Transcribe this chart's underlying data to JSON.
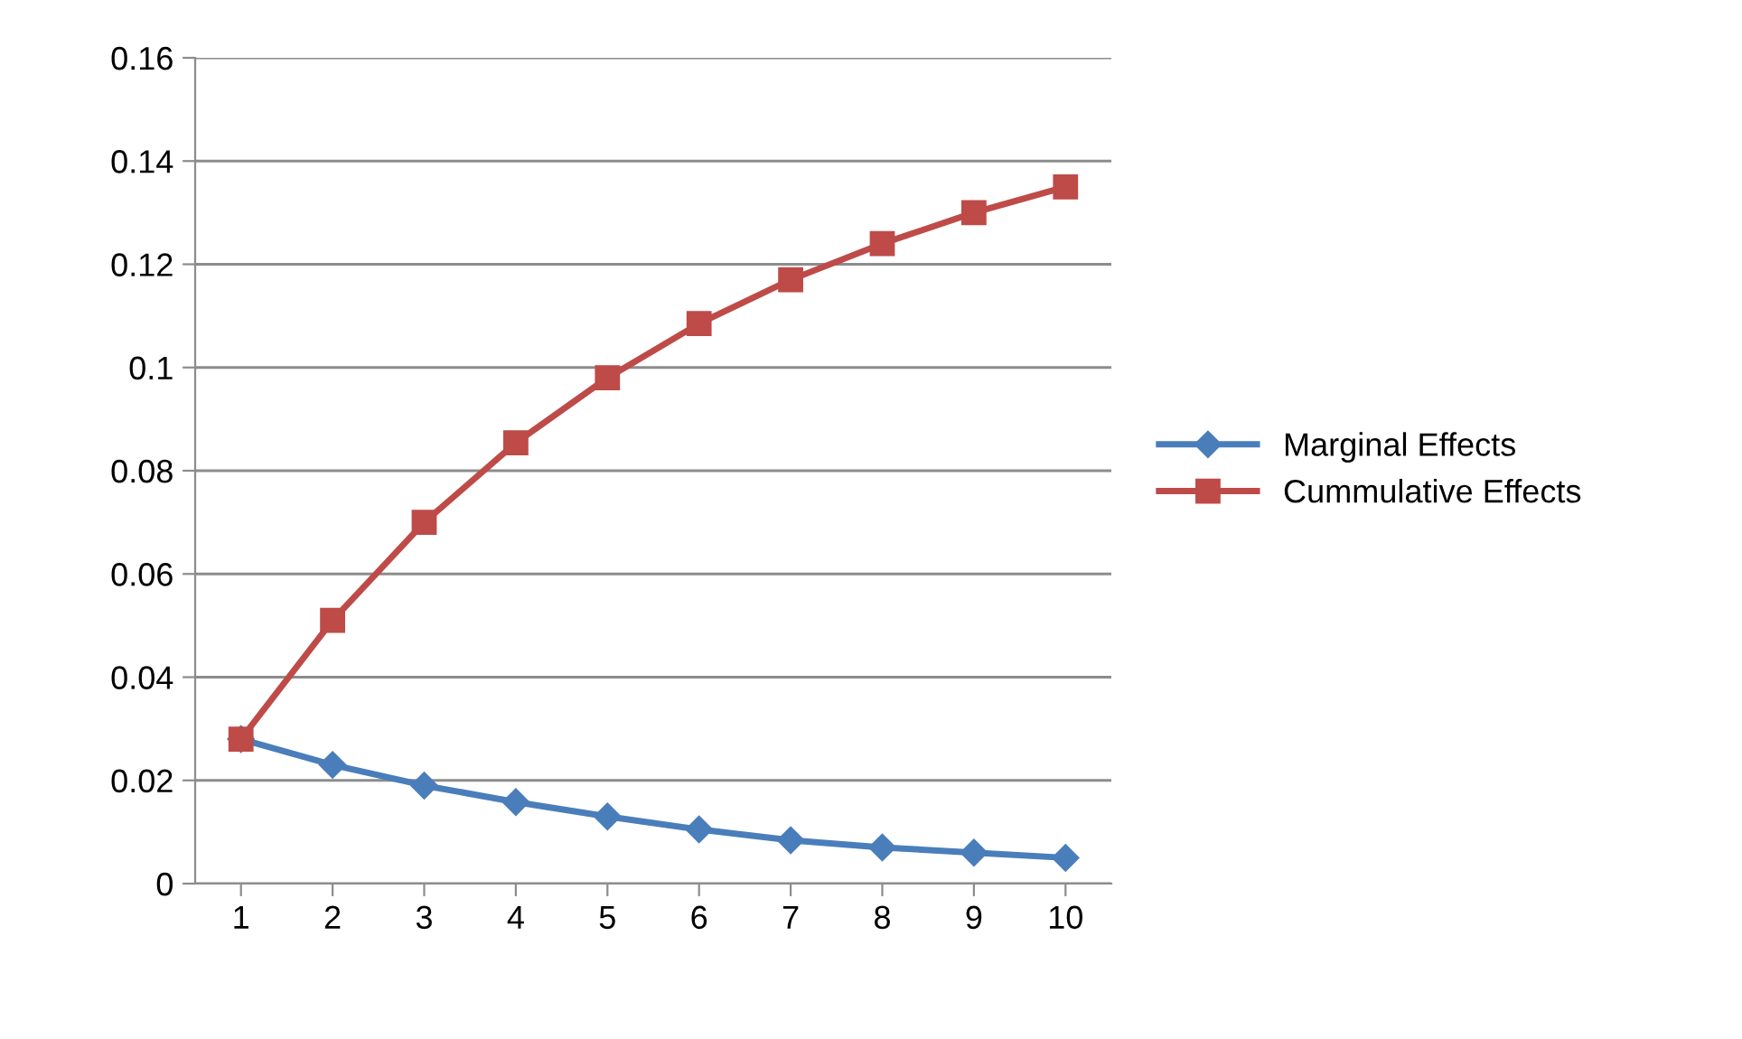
{
  "chart_data": {
    "type": "line",
    "categories": [
      "1",
      "2",
      "3",
      "4",
      "5",
      "6",
      "7",
      "8",
      "9",
      "10"
    ],
    "series": [
      {
        "name": "Marginal Effects",
        "color": "#4a7ebb",
        "marker": "diamond",
        "values": [
          0.028,
          0.023,
          0.019,
          0.0158,
          0.013,
          0.0105,
          0.0084,
          0.007,
          0.006,
          0.005
        ]
      },
      {
        "name": "Cummulative Effects",
        "color": "#be4b48",
        "marker": "square",
        "values": [
          0.028,
          0.051,
          0.07,
          0.0854,
          0.098,
          0.1085,
          0.117,
          0.124,
          0.13,
          0.135
        ]
      }
    ],
    "ylim": [
      0,
      0.16
    ],
    "yticks": [
      {
        "value": 0,
        "label": "0"
      },
      {
        "value": 0.02,
        "label": "0.02"
      },
      {
        "value": 0.04,
        "label": "0.04"
      },
      {
        "value": 0.06,
        "label": "0.06"
      },
      {
        "value": 0.08,
        "label": "0.08"
      },
      {
        "value": 0.1,
        "label": "0.1"
      },
      {
        "value": 0.12,
        "label": "0.12"
      },
      {
        "value": 0.14,
        "label": "0.14"
      },
      {
        "value": 0.16,
        "label": "0.16"
      }
    ],
    "grid": "y",
    "legend": "right"
  }
}
